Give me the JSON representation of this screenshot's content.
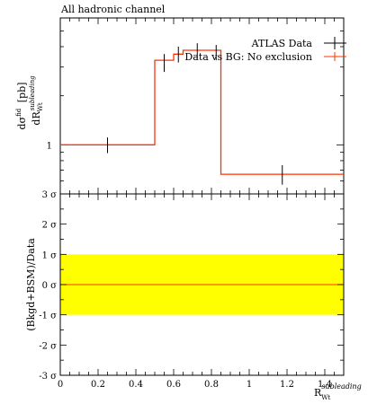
{
  "chart_data": [
    {
      "type": "line",
      "panel": "main",
      "title": "All hadronic channel",
      "ylabel_main": "dσ",
      "ylabel_main_sup": "fid",
      "ylabel_den": "dR",
      "ylabel_den_sub": "Wt",
      "ylabel_den_sup": "subleading",
      "ylabel_unit": "[pb]",
      "ytick_labels": [
        "1"
      ],
      "y_scale": "log",
      "xlim": [
        0,
        1.5
      ],
      "legend": {
        "placement": "top-right",
        "entries": [
          "ATLAS Data",
          "Data vs BG: No exclusion"
        ]
      },
      "series": [
        {
          "name": "ATLAS Data",
          "color": "#000000",
          "points": [
            {
              "x": 0.25,
              "y": 1.0,
              "err": 0.11
            },
            {
              "x": 0.55,
              "y": 3.2,
              "err": 0.4
            },
            {
              "x": 0.625,
              "y": 3.6,
              "err": 0.4
            },
            {
              "x": 0.725,
              "y": 3.8,
              "err": 0.4
            },
            {
              "x": 0.825,
              "y": 3.7,
              "err": 0.4
            },
            {
              "x": 1.175,
              "y": 0.66,
              "err": 0.09
            }
          ]
        },
        {
          "name": "Data vs BG: No exclusion",
          "color": "#ff3300",
          "bins": [
            {
              "lo": 0.0,
              "hi": 0.5,
              "y": 1.0
            },
            {
              "lo": 0.5,
              "hi": 0.6,
              "y": 3.3
            },
            {
              "lo": 0.6,
              "hi": 0.65,
              "y": 3.6
            },
            {
              "lo": 0.65,
              "hi": 0.8,
              "y": 3.8
            },
            {
              "lo": 0.8,
              "hi": 0.85,
              "y": 3.8
            },
            {
              "lo": 0.85,
              "hi": 1.5,
              "y": 0.66
            }
          ]
        }
      ]
    },
    {
      "type": "line",
      "panel": "ratio",
      "ylabel": "(Bkgd+BSM)/Data",
      "ylim": [
        -3,
        3
      ],
      "yticks": [
        3,
        2,
        1,
        0,
        -1,
        -2,
        -3
      ],
      "ytick_unit": "σ",
      "band": {
        "lo": -1,
        "hi": 1,
        "color": "#ffff00"
      },
      "line": {
        "y": 0,
        "color": "#ff3300"
      },
      "xlim": [
        0,
        1.5
      ],
      "xticks": [
        0,
        0.2,
        0.4,
        0.6,
        0.8,
        1,
        1.2,
        1.4
      ],
      "xtick_labels": [
        "0",
        "0.2",
        "0.4",
        "0.6",
        "0.8",
        "1",
        "1.2",
        "1.4"
      ],
      "xlabel": "R",
      "xlabel_sub": "Wt",
      "xlabel_sup": "subleading"
    }
  ]
}
